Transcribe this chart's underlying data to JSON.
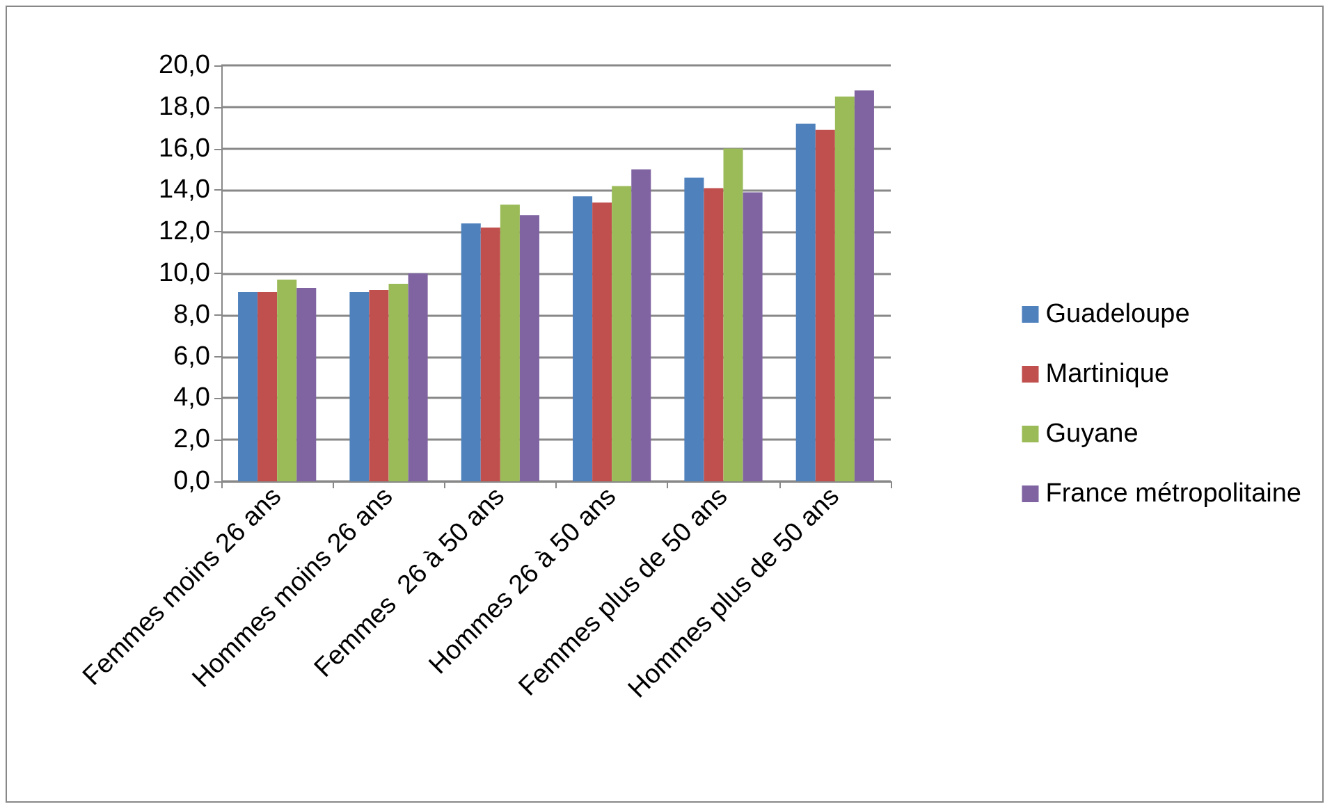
{
  "chart_data": {
    "type": "bar",
    "categories": [
      "Femmes moins 26 ans",
      "Hommes moins 26 ans",
      "Femmes  26 à 50 ans",
      "Hommes 26 à 50 ans",
      "Femmes plus de 50 ans",
      "Hommes plus de 50 ans"
    ],
    "series": [
      {
        "name": "Guadeloupe",
        "color": "#4f81bd",
        "values": [
          9.1,
          9.1,
          12.4,
          13.7,
          14.6,
          17.2
        ]
      },
      {
        "name": "Martinique",
        "color": "#c0504d",
        "values": [
          9.1,
          9.2,
          12.2,
          13.4,
          14.1,
          16.9
        ]
      },
      {
        "name": "Guyane",
        "color": "#9bbb59",
        "values": [
          9.7,
          9.5,
          13.3,
          14.2,
          16.0,
          18.5
        ]
      },
      {
        "name": "France métropolitaine",
        "color": "#8064a2",
        "values": [
          9.3,
          10.0,
          12.8,
          15.0,
          13.9,
          18.8
        ]
      }
    ],
    "ylim": [
      0,
      20
    ],
    "yticks": [
      {
        "value": 0,
        "label": "0,0"
      },
      {
        "value": 2,
        "label": "2,0"
      },
      {
        "value": 4,
        "label": "4,0"
      },
      {
        "value": 6,
        "label": "6,0"
      },
      {
        "value": 8,
        "label": "8,0"
      },
      {
        "value": 10,
        "label": "10,0"
      },
      {
        "value": 12,
        "label": "12,0"
      },
      {
        "value": 14,
        "label": "14,0"
      },
      {
        "value": 16,
        "label": "16,0"
      },
      {
        "value": 18,
        "label": "18,0"
      },
      {
        "value": 20,
        "label": "20,0"
      }
    ],
    "grid": "y",
    "legend": "right"
  }
}
